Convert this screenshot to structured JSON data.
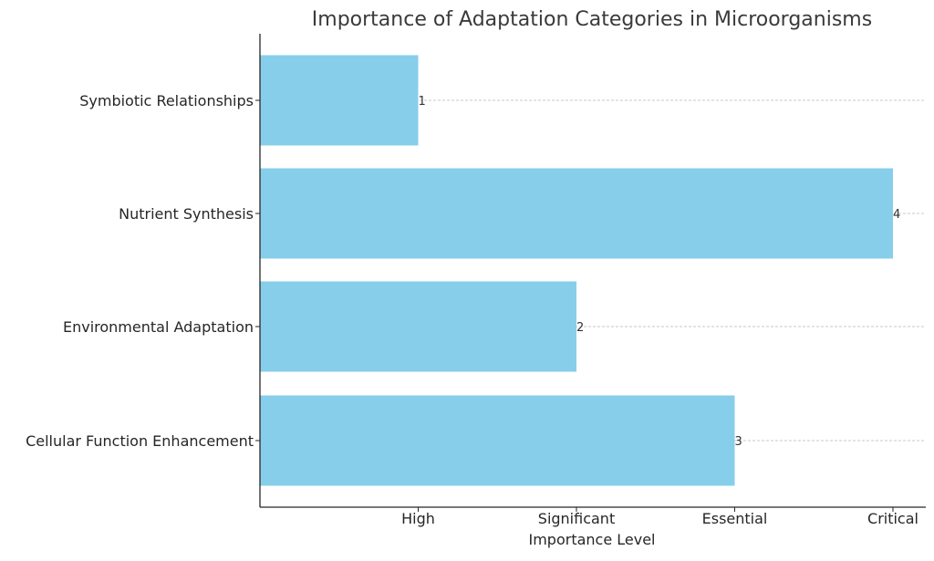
{
  "chart_data": {
    "type": "bar",
    "orientation": "horizontal",
    "title": "Importance of Adaptation Categories in Microorganisms",
    "xlabel": "Importance Level",
    "ylabel": "",
    "categories": [
      "Symbiotic Relationships",
      "Nutrient Synthesis",
      "Environmental Adaptation",
      "Cellular Function Enhancement"
    ],
    "values": [
      1,
      4,
      2,
      3
    ],
    "data_labels": [
      "1",
      "4",
      "2",
      "3"
    ],
    "x_ticks": [
      {
        "value": 1,
        "label": "High"
      },
      {
        "value": 2,
        "label": "Significant"
      },
      {
        "value": 3,
        "label": "Essential"
      },
      {
        "value": 4,
        "label": "Critical"
      }
    ],
    "xlim": [
      0,
      4.2
    ],
    "grid": "x dashed",
    "bar_color": "#87CEEB",
    "legend": "none"
  }
}
